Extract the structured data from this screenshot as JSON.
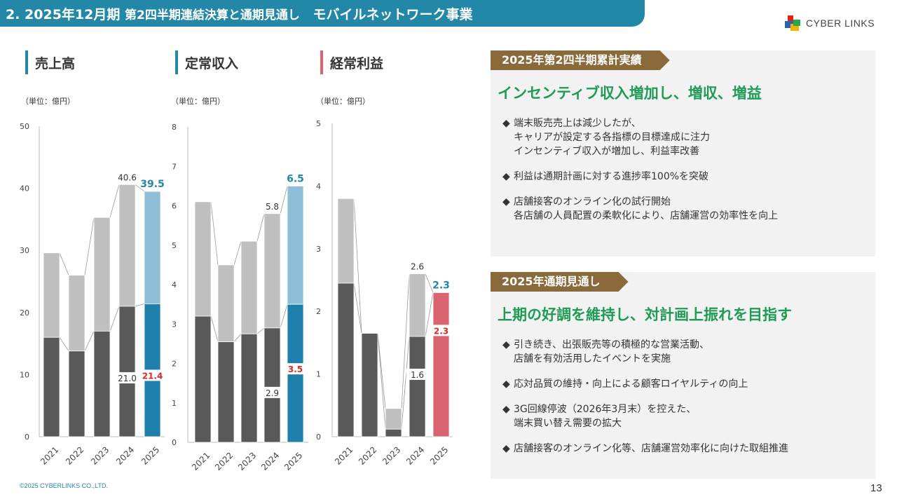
{
  "header": {
    "title_main": "2. 2025年12月期",
    "title_sub": "第2四半期連結決算と通期見通し",
    "title_dept": "モバイルネットワーク事業"
  },
  "logo": {
    "text": "CYBER LINKS"
  },
  "chart_data": [
    {
      "type": "bar",
      "title": "売上高",
      "unit": "（単位：億円）",
      "categories": [
        "2021",
        "2022",
        "2023",
        "2024",
        "2025"
      ],
      "series": [
        {
          "values": [
            16.0,
            13.8,
            17.0,
            21.0,
            21.4
          ]
        },
        {
          "values": [
            29.6,
            26.0,
            35.3,
            40.6,
            39.5
          ]
        }
      ],
      "data_labels": [
        {
          "index": 3,
          "lower": "21.0",
          "total": "40.6"
        },
        {
          "index": 4,
          "lower": "21.4",
          "total": "39.5"
        }
      ],
      "ylim": [
        0,
        50
      ],
      "yticks": [
        0,
        10,
        20,
        30,
        40,
        50
      ],
      "title_color": "#2387a8",
      "highlight_dark": "#1f7fab",
      "highlight_light": "#8fbfd8",
      "label_color": "#2387a8",
      "lower_label_color": "#d62b2b"
    },
    {
      "type": "bar",
      "title": "定常収入",
      "unit": "（単位：億円）",
      "categories": [
        "2021",
        "2022",
        "2023",
        "2024",
        "2025"
      ],
      "series": [
        {
          "values": [
            3.2,
            2.55,
            2.75,
            2.9,
            3.5
          ]
        },
        {
          "values": [
            6.1,
            4.5,
            5.1,
            5.8,
            6.5
          ]
        }
      ],
      "data_labels": [
        {
          "index": 3,
          "lower": "2.9",
          "total": "5.8"
        },
        {
          "index": 4,
          "lower": "3.5",
          "total": "6.5"
        }
      ],
      "ylim": [
        0,
        8
      ],
      "yticks": [
        0,
        1,
        2,
        3,
        4,
        5,
        6,
        7,
        8
      ],
      "title_color": "#2387a8",
      "highlight_dark": "#1f7fab",
      "highlight_light": "#8fbfd8",
      "label_color": "#2387a8",
      "lower_label_color": "#d62b2b"
    },
    {
      "type": "bar",
      "title": "経常利益",
      "unit": "（単位：億円）",
      "categories": [
        "2021",
        "2022",
        "2023",
        "2024",
        "2025"
      ],
      "series": [
        {
          "values": [
            2.45,
            1.65,
            0.12,
            1.6,
            2.3
          ]
        },
        {
          "values": [
            3.8,
            1.65,
            0.45,
            2.6,
            2.3
          ]
        }
      ],
      "data_labels": [
        {
          "index": 3,
          "lower": "1.6",
          "total": "2.6"
        },
        {
          "index": 4,
          "lower": "2.3",
          "total": "2.3"
        }
      ],
      "ylim": [
        0,
        5
      ],
      "yticks": [
        0,
        1,
        2,
        3,
        4,
        5
      ],
      "title_color": "#d9646f",
      "highlight_dark": "#d9646f",
      "highlight_light": "#d9646f",
      "label_color": "#2387a8",
      "lower_label_color": "#d62b2b"
    }
  ],
  "results": {
    "ribbon": "2025年第2四半期累計実績",
    "headline": "インセンティブ収入増加し、増収、増益",
    "bullets": [
      {
        "mark": "◆",
        "lines": [
          "端末販売売上は減少したが、",
          "キャリアが設定する各指標の目標達成に注力",
          "インセンティブ収入が増加し、利益率改善"
        ]
      },
      {
        "mark": "◆",
        "lines": [
          "利益は通期計画に対する進捗率100%を突破"
        ]
      },
      {
        "mark": "◆",
        "lines": [
          "店舗接客のオンライン化の試行開始",
          "各店舗の人員配置の柔軟化により、店舗運営の効率性を向上"
        ]
      }
    ]
  },
  "outlook": {
    "ribbon": "2025年通期見通し",
    "headline": "上期の好調を維持し、対計画上振れを目指す",
    "bullets": [
      {
        "mark": "◆",
        "lines": [
          "引き続き、出張販売等の積極的な営業活動、",
          "店舗を有効活用したイベントを実施"
        ]
      },
      {
        "mark": "◆",
        "lines": [
          "応対品質の維持・向上による顧客ロイヤルティの向上"
        ]
      },
      {
        "mark": "◆",
        "lines": [
          "3G回線停波（2026年3月末）を控えた、",
          "端末買い替え需要の拡大"
        ]
      },
      {
        "mark": "◆",
        "lines": [
          "店舗接客のオンライン化等、店舗運営効率化に向けた取組推進"
        ]
      }
    ]
  },
  "footer": {
    "copyright": "©2025 CYBERLINKS CO.,LTD.",
    "page": "13"
  }
}
